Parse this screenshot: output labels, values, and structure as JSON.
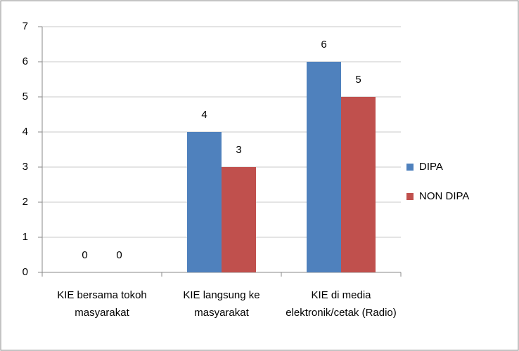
{
  "chart_data": {
    "type": "bar",
    "categories": [
      "KIE bersama tokoh masyarakat",
      "KIE langsung ke masyarakat",
      "KIE di media elektronik/cetak (Radio)"
    ],
    "series": [
      {
        "name": "DIPA",
        "color": "#4f81bd",
        "values": [
          0,
          4,
          6
        ]
      },
      {
        "name": "NON DIPA",
        "color": "#c0504d",
        "values": [
          0,
          3,
          5
        ]
      }
    ],
    "ylim": [
      0,
      7
    ],
    "yticks": [
      0,
      1,
      2,
      3,
      4,
      5,
      6,
      7
    ],
    "grid": true,
    "legend": "right"
  }
}
